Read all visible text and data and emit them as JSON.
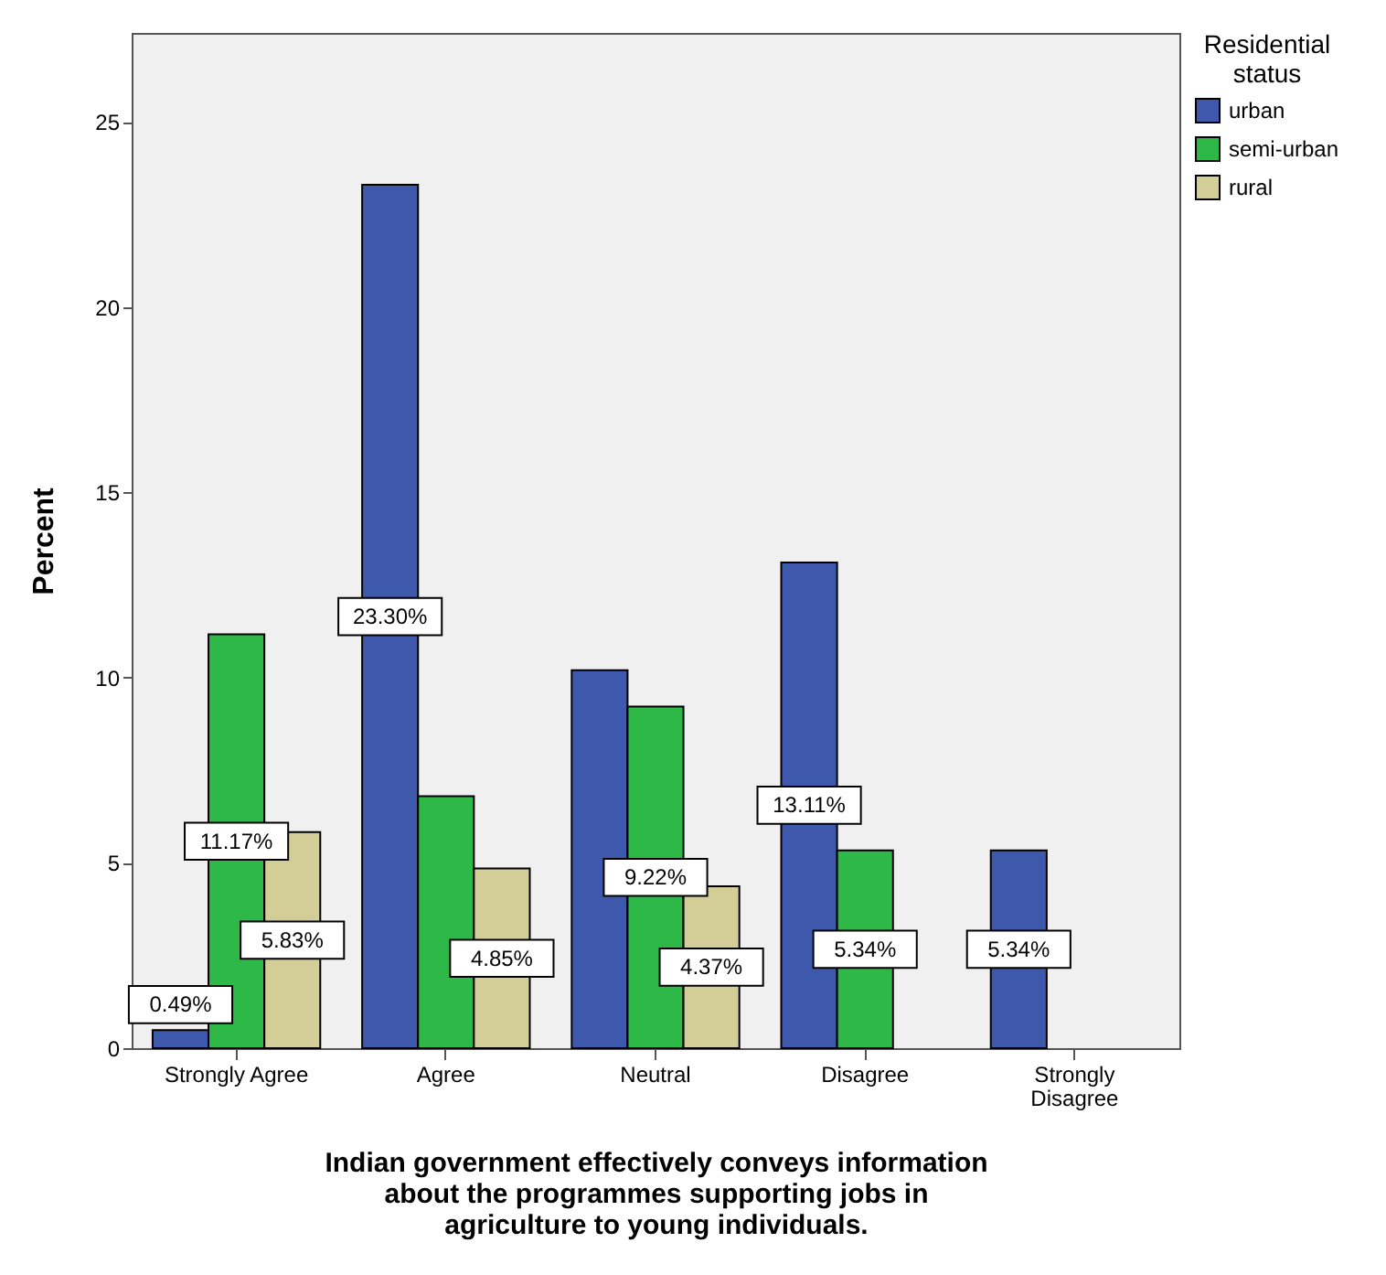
{
  "chart_data": {
    "type": "bar",
    "xlabel": "Indian government effectively conveys information about the programmes supporting jobs in agriculture to young individuals.",
    "ylabel": "Percent",
    "legend_title": "Residential status",
    "legend": "top right",
    "grid": false,
    "categories": [
      "Strongly Agree",
      "Agree",
      "Neutral",
      "Disagree",
      "Strongly Disagree"
    ],
    "ylim": [
      0,
      27.4
    ],
    "yticks": [
      0,
      5,
      10,
      15,
      20,
      25
    ],
    "series": [
      {
        "name": "urban",
        "color": "#3e58ac",
        "values": [
          0.49,
          23.3,
          10.2,
          13.11,
          5.34
        ],
        "value_labels": [
          "0.49%",
          "23.30%",
          null,
          "13.11%",
          "5.34%"
        ]
      },
      {
        "name": "semi-urban",
        "color": "#2eb848",
        "values": [
          11.17,
          6.8,
          9.22,
          5.34,
          null
        ],
        "value_labels": [
          "11.17%",
          null,
          "9.22%",
          "5.34%",
          null
        ]
      },
      {
        "name": "rural",
        "color": "#d3ce97",
        "values": [
          5.83,
          4.85,
          4.37,
          null,
          null
        ],
        "value_labels": [
          "5.83%",
          "4.85%",
          "4.37%",
          null,
          null
        ]
      }
    ]
  }
}
